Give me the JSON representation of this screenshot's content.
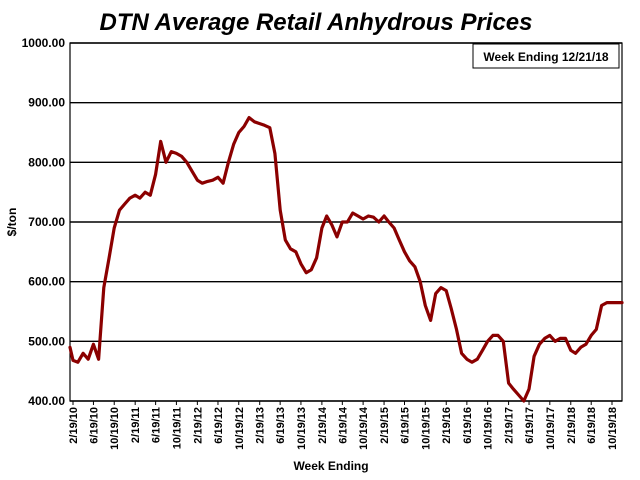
{
  "colors": {
    "series": "#8b0000",
    "grid": "#000000",
    "background": "#ffffff"
  },
  "chart_data": {
    "type": "line",
    "title": "DTN Average Retail Anhydrous Prices",
    "xlabel": "Week Ending",
    "ylabel": "$/ton",
    "ylim": [
      400,
      1000
    ],
    "yticks": [
      "400.00",
      "500.00",
      "600.00",
      "700.00",
      "800.00",
      "900.00",
      "1000.00"
    ],
    "xticks": [
      "2/19/10",
      "6/19/10",
      "10/19/10",
      "2/19/11",
      "6/19/11",
      "10/19/11",
      "2/19/12",
      "6/19/12",
      "10/19/12",
      "2/19/13",
      "6/19/13",
      "10/19/13",
      "2/19/14",
      "6/19/14",
      "10/19/14",
      "2/19/15",
      "6/19/15",
      "10/19/15",
      "2/19/16",
      "6/19/16",
      "10/19/16",
      "2/19/17",
      "6/19/17",
      "10/19/17",
      "2/19/18",
      "6/19/18",
      "10/19/18"
    ],
    "annotation": "Week Ending 12/21/18",
    "grid": true,
    "series": [
      {
        "x": [
          "2010-01-15",
          "2010-02-19",
          "2010-03-20",
          "2010-04-19",
          "2010-05-19",
          "2010-06-19",
          "2010-07-19",
          "2010-08-19",
          "2010-09-19",
          "2010-10-19",
          "2010-11-19",
          "2010-12-19",
          "2011-01-19",
          "2011-02-19",
          "2011-03-19",
          "2011-04-19",
          "2011-05-19",
          "2011-06-19",
          "2011-07-19",
          "2011-08-19",
          "2011-09-19",
          "2011-10-19",
          "2011-11-19",
          "2011-12-19",
          "2012-01-19",
          "2012-02-19",
          "2012-03-19",
          "2012-04-19",
          "2012-05-19",
          "2012-06-19",
          "2012-07-19",
          "2012-08-19",
          "2012-09-19",
          "2012-10-19",
          "2012-11-19",
          "2012-12-19",
          "2013-01-19",
          "2013-02-19",
          "2013-03-19",
          "2013-04-19",
          "2013-05-19",
          "2013-06-19",
          "2013-07-19",
          "2013-08-19",
          "2013-09-19",
          "2013-10-19",
          "2013-11-19",
          "2013-12-19",
          "2014-01-19",
          "2014-02-19",
          "2014-03-19",
          "2014-04-19",
          "2014-05-19",
          "2014-06-19",
          "2014-07-19",
          "2014-08-19",
          "2014-09-19",
          "2014-10-19",
          "2014-11-19",
          "2014-12-19",
          "2015-01-19",
          "2015-02-19",
          "2015-03-19",
          "2015-04-19",
          "2015-05-19",
          "2015-06-19",
          "2015-07-19",
          "2015-08-19",
          "2015-09-19",
          "2015-10-19",
          "2015-11-19",
          "2015-12-19",
          "2016-01-19",
          "2016-02-19",
          "2016-03-19",
          "2016-04-19",
          "2016-05-19",
          "2016-06-19",
          "2016-07-19",
          "2016-08-19",
          "2016-09-19",
          "2016-10-19",
          "2016-11-19",
          "2016-12-19",
          "2017-01-19",
          "2017-02-19",
          "2017-03-19",
          "2017-04-19",
          "2017-05-19",
          "2017-06-19",
          "2017-07-19",
          "2017-08-19",
          "2017-09-19",
          "2017-10-19",
          "2017-11-19",
          "2017-12-19",
          "2018-01-19",
          "2018-02-19",
          "2018-03-19",
          "2018-04-19",
          "2018-05-19",
          "2018-06-19",
          "2018-07-19",
          "2018-08-19",
          "2018-09-19",
          "2018-10-19",
          "2018-11-19",
          "2018-12-21"
        ],
        "values": [
          490,
          468,
          465,
          480,
          470,
          495,
          470,
          590,
          640,
          690,
          720,
          730,
          740,
          745,
          740,
          750,
          745,
          780,
          835,
          800,
          818,
          815,
          810,
          800,
          785,
          770,
          765,
          768,
          770,
          775,
          765,
          800,
          830,
          850,
          860,
          875,
          868,
          865,
          862,
          858,
          815,
          720,
          670,
          655,
          650,
          630,
          615,
          620,
          640,
          690,
          710,
          695,
          675,
          700,
          700,
          715,
          710,
          705,
          710,
          708,
          700,
          710,
          700,
          690,
          670,
          650,
          635,
          625,
          600,
          560,
          535,
          580,
          590,
          585,
          555,
          520,
          480,
          470,
          465,
          470,
          485,
          500,
          510,
          510,
          500,
          430,
          420,
          410,
          400,
          420,
          475,
          495,
          505,
          510,
          500,
          505,
          505,
          485,
          480,
          490,
          495,
          510,
          520,
          560,
          565,
          565,
          565,
          565
        ]
      }
    ]
  }
}
